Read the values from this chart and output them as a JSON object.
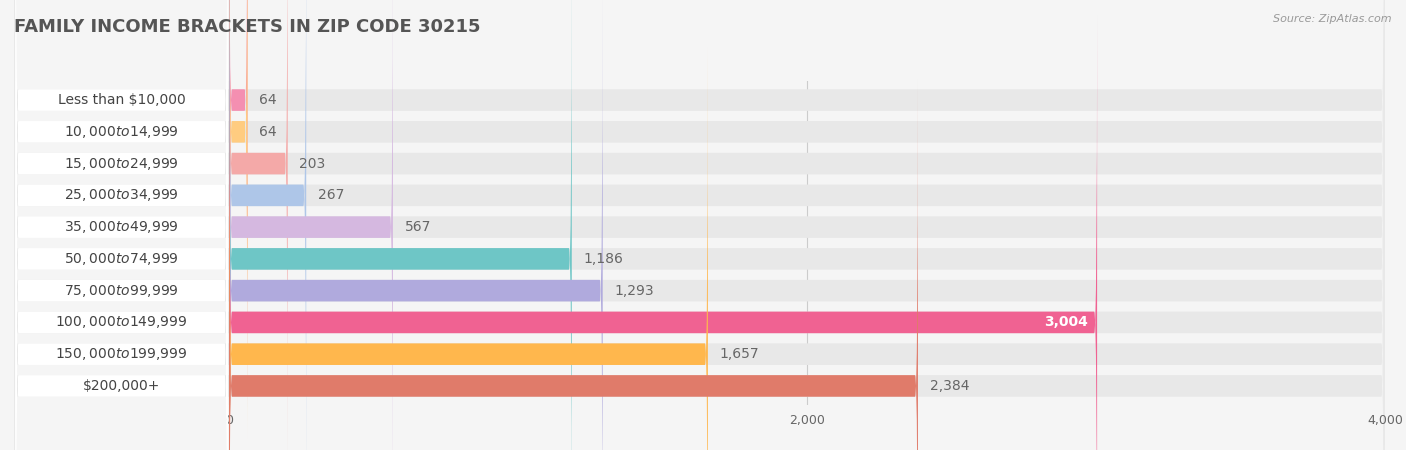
{
  "title": "FAMILY INCOME BRACKETS IN ZIP CODE 30215",
  "source": "Source: ZipAtlas.com",
  "categories": [
    "Less than $10,000",
    "$10,000 to $14,999",
    "$15,000 to $24,999",
    "$25,000 to $34,999",
    "$35,000 to $49,999",
    "$50,000 to $74,999",
    "$75,000 to $99,999",
    "$100,000 to $149,999",
    "$150,000 to $199,999",
    "$200,000+"
  ],
  "values": [
    64,
    64,
    203,
    267,
    567,
    1186,
    1293,
    3004,
    1657,
    2384
  ],
  "bar_colors": [
    "#f48fb1",
    "#ffcc80",
    "#f4a9a8",
    "#aec6e8",
    "#d5b8e0",
    "#6ec6c6",
    "#b0aadd",
    "#f06292",
    "#ffb74d",
    "#e07b6a"
  ],
  "xlim": [
    0,
    4000
  ],
  "xticks": [
    0,
    2000,
    4000
  ],
  "background_color": "#f5f5f5",
  "bar_bg_color": "#e8e8e8",
  "label_bg_color": "#ffffff",
  "title_fontsize": 13,
  "label_fontsize": 10,
  "value_fontsize": 10,
  "value_color_inside": "#ffffff",
  "value_color_outside": "#666666",
  "inside_label_threshold": 3004
}
